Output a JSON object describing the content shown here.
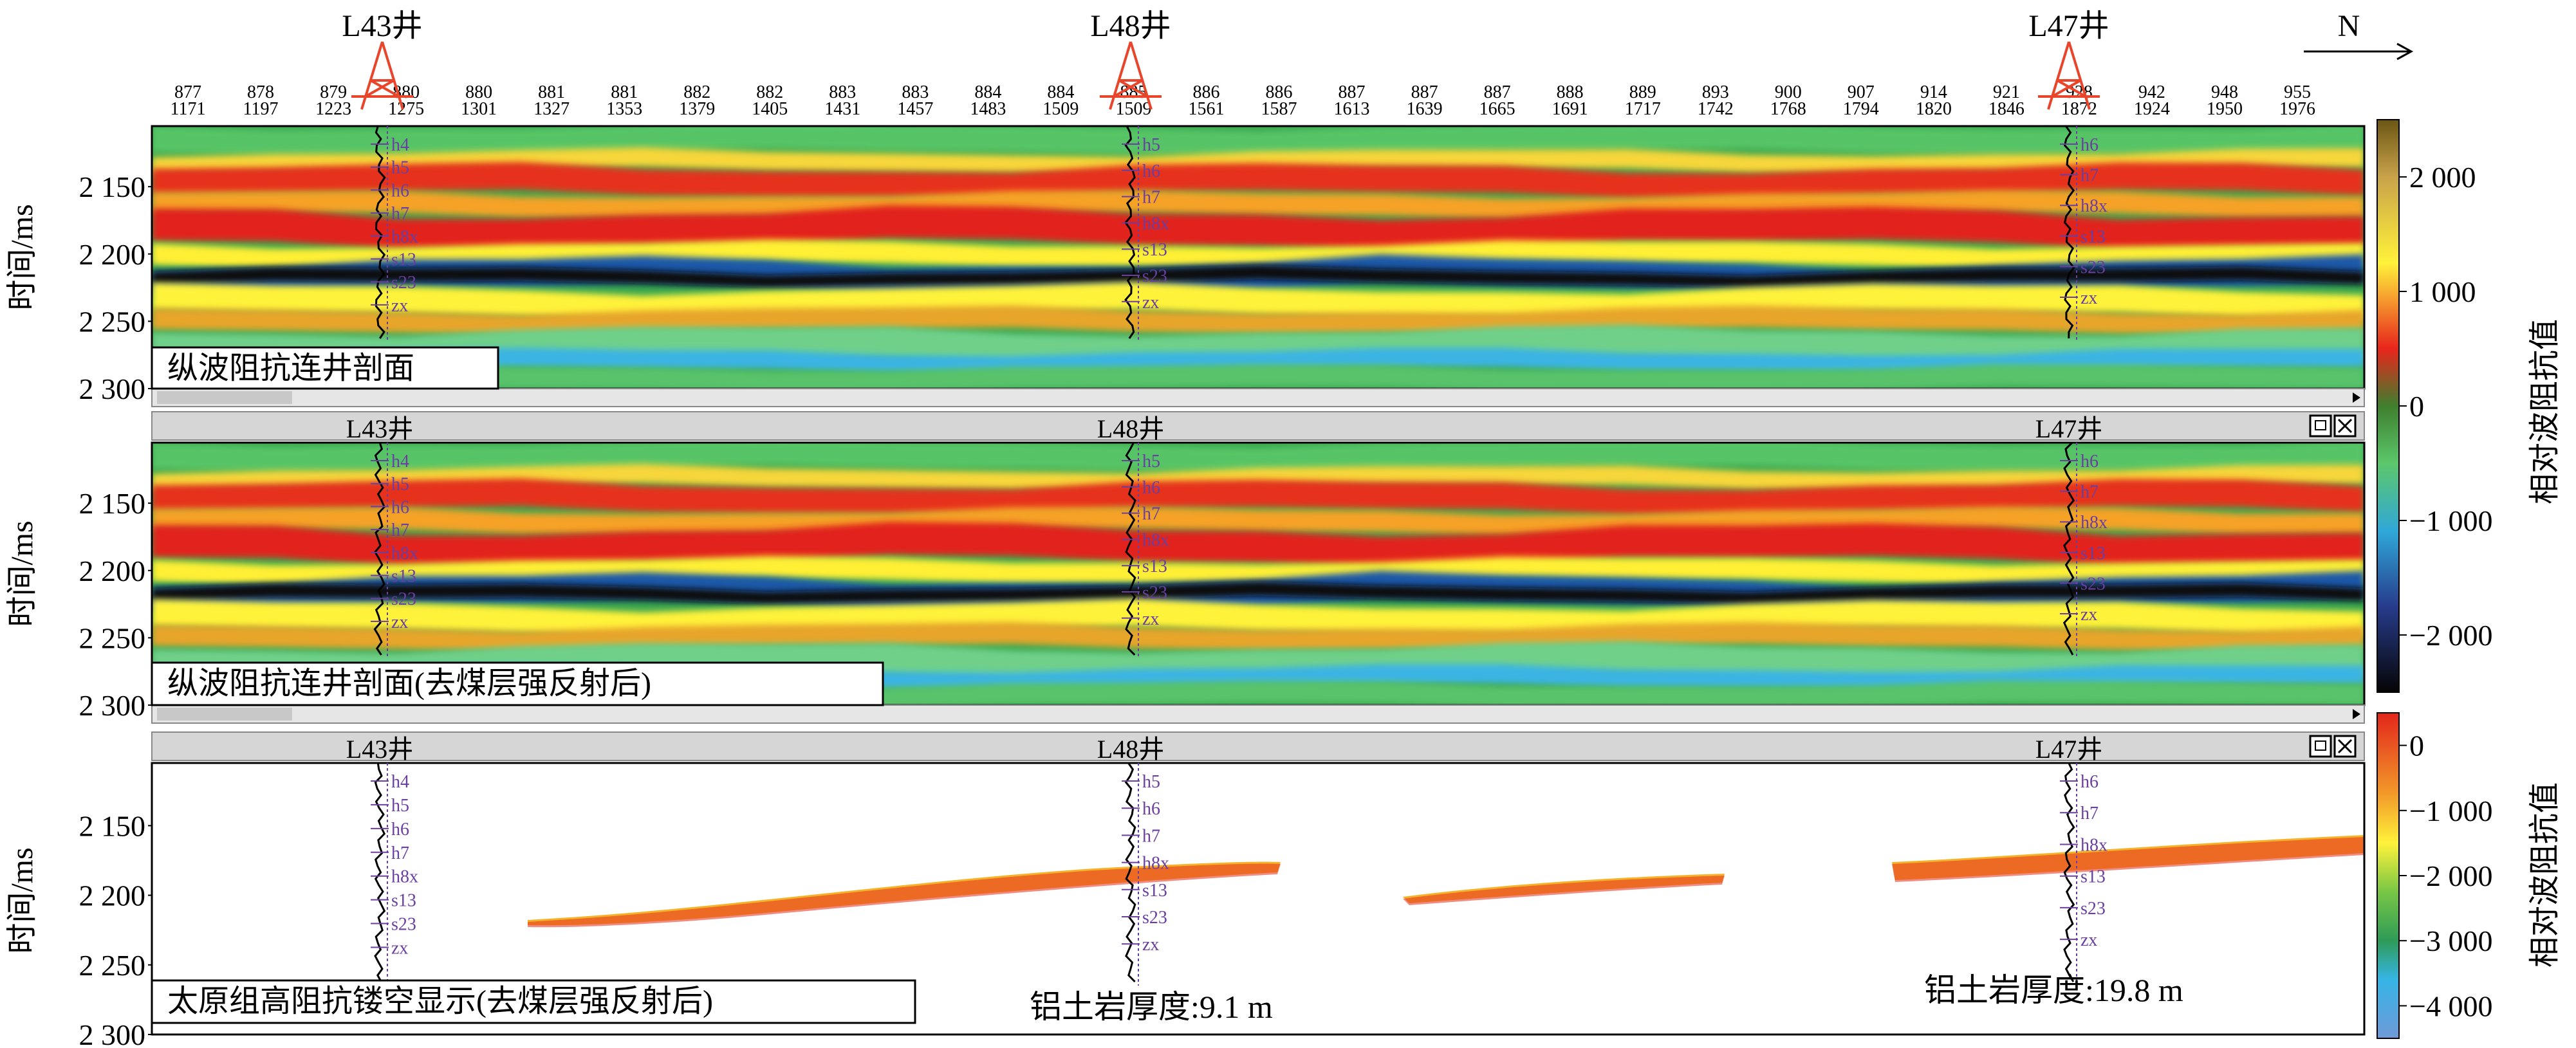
{
  "colors": {
    "background": "#ffffff",
    "well_symbol": "#e8452b",
    "log_label": "#6a3fa0",
    "frame": "#000000",
    "bar_gray": "#d6d6d6"
  },
  "top_axis": {
    "row1": [
      "877",
      "878",
      "879",
      "880",
      "880",
      "881",
      "881",
      "882",
      "882",
      "883",
      "883",
      "884",
      "884",
      "885",
      "886",
      "886",
      "887",
      "887",
      "887",
      "888",
      "889",
      "893",
      "900",
      "907",
      "914",
      "921",
      "928",
      "942",
      "948",
      "955"
    ],
    "row2": [
      "1171",
      "1197",
      "1223",
      "1275",
      "1301",
      "1327",
      "1353",
      "1379",
      "1405",
      "1431",
      "1457",
      "1483",
      "1509",
      "1509",
      "1561",
      "1587",
      "1613",
      "1639",
      "1665",
      "1691",
      "1717",
      "1742",
      "1768",
      "1794",
      "1820",
      "1846",
      "1872",
      "1924",
      "1950",
      "1976"
    ]
  },
  "north_label": "N",
  "wells_top": [
    "L43井",
    "L48井",
    "L47井"
  ],
  "chart_data": [
    {
      "type": "heatmap",
      "panel": 1,
      "title": "纵波阻抗连井剖面",
      "ylabel": "时间/ms",
      "y_ticks": [
        "2 150",
        "2 200",
        "2 250",
        "2 300"
      ],
      "ylim": [
        2300,
        2105
      ],
      "wells": [
        {
          "name": "L43井",
          "labels": [
            "h4",
            "h5",
            "h6",
            "h7",
            "h8x",
            "s13",
            "s23",
            "zx"
          ]
        },
        {
          "name": "L48井",
          "labels": [
            "h5",
            "h6",
            "h7",
            "h8x",
            "s13",
            "s23",
            "zx"
          ]
        },
        {
          "name": "L47井",
          "labels": [
            "h6",
            "h7",
            "h8x",
            "s13",
            "s23",
            "zx"
          ]
        }
      ],
      "colorbar": {
        "label": "相对波阻抗值",
        "ticks": [
          "2 000",
          "1 000",
          "0",
          "−1 000",
          "−2 000"
        ],
        "range": [
          -2500,
          2500
        ]
      }
    },
    {
      "type": "heatmap",
      "panel": 2,
      "title": "纵波阻抗连井剖面(去煤层强反射后)",
      "ylabel": "时间/ms",
      "y_ticks": [
        "2 150",
        "2 200",
        "2 250",
        "2 300"
      ],
      "ylim": [
        2300,
        2105
      ],
      "wells": [
        {
          "name": "L43井",
          "labels": [
            "h4",
            "h5",
            "h6",
            "h7",
            "h8x",
            "s13",
            "s23",
            "zx"
          ]
        },
        {
          "name": "L48井",
          "labels": [
            "h5",
            "h6",
            "h7",
            "h8x",
            "s13",
            "s23",
            "zx"
          ]
        },
        {
          "name": "L47井",
          "labels": [
            "h6",
            "h7",
            "h8x",
            "s13",
            "s23",
            "zx"
          ]
        }
      ]
    },
    {
      "type": "heatmap",
      "panel": 3,
      "title": "太原组高阻抗镂空显示(去煤层强反射后)",
      "ylabel": "时间/ms",
      "y_ticks": [
        "2 150",
        "2 200",
        "2 250",
        "2 300"
      ],
      "ylim": [
        2300,
        2105
      ],
      "wells": [
        {
          "name": "L43井",
          "labels": [
            "h4",
            "h5",
            "h6",
            "h7",
            "h8x",
            "s13",
            "s23",
            "zx"
          ]
        },
        {
          "name": "L48井",
          "labels": [
            "h5",
            "h6",
            "h7",
            "h8x",
            "s13",
            "s23",
            "zx"
          ]
        },
        {
          "name": "L47井",
          "labels": [
            "h6",
            "h7",
            "h8x",
            "s13",
            "s23",
            "zx"
          ]
        }
      ],
      "annotations": [
        "铝土岩厚度:9.1 m",
        "铝土岩厚度:19.8 m"
      ],
      "colorbar": {
        "label": "相对波阻抗值",
        "ticks": [
          "0",
          "−1 000",
          "−2 000",
          "−3 000",
          "−4 000"
        ],
        "range": [
          -4500,
          500
        ]
      }
    }
  ]
}
